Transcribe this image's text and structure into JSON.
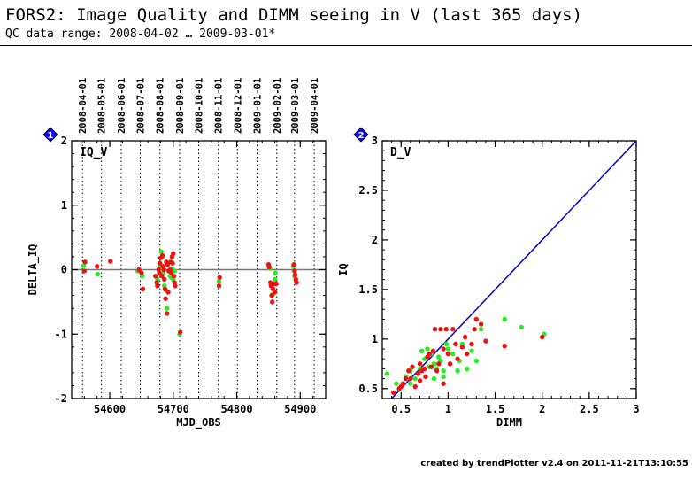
{
  "header": {
    "title": "FORS2: Image Quality and DIMM seeing in V (last 365 days)",
    "subtitle": "QC data range: 2008-04-02 … 2009-03-01*"
  },
  "footer": "created by trendPlotter v2.4 on 2011-11-21T13:10:55",
  "colors": {
    "green": "#22ee22",
    "red": "#ee1111",
    "line": "#0000cc",
    "badge": "#1010ee"
  },
  "chart_data": [
    {
      "id": "iq-v-panel",
      "badge": "1",
      "type": "scatter",
      "panel_label": "IQ_V",
      "xlabel": "MJD_OBS",
      "ylabel": "DELTA_IQ",
      "xlim": [
        54540,
        54940
      ],
      "ylim": [
        -2,
        2
      ],
      "x_ticks": [
        54600,
        54700,
        54800,
        54900
      ],
      "y_ticks": [
        -2,
        -1,
        0,
        1,
        2
      ],
      "hline": 0,
      "date_markers": [
        {
          "mjd": 54557,
          "label": "2008-04-01"
        },
        {
          "mjd": 54587,
          "label": "2008-05-01"
        },
        {
          "mjd": 54618,
          "label": "2008-06-01"
        },
        {
          "mjd": 54648,
          "label": "2008-07-01"
        },
        {
          "mjd": 54679,
          "label": "2008-08-01"
        },
        {
          "mjd": 54710,
          "label": "2008-09-01"
        },
        {
          "mjd": 54740,
          "label": "2008-10-01"
        },
        {
          "mjd": 54771,
          "label": "2008-11-01"
        },
        {
          "mjd": 54801,
          "label": "2008-12-01"
        },
        {
          "mjd": 54832,
          "label": "2009-01-01"
        },
        {
          "mjd": 54863,
          "label": "2009-02-01"
        },
        {
          "mjd": 54891,
          "label": "2009-03-01"
        },
        {
          "mjd": 54922,
          "label": "2009-04-01"
        }
      ],
      "series": [
        {
          "color": "green",
          "points": [
            [
              54559,
              0.06
            ],
            [
              54581,
              -0.07
            ],
            [
              54644,
              -0.02
            ],
            [
              54651,
              -0.1
            ],
            [
              54675,
              -0.15
            ],
            [
              54679,
              0.05
            ],
            [
              54681,
              0.28
            ],
            [
              54683,
              0.2
            ],
            [
              54684,
              -0.05
            ],
            [
              54686,
              -0.25
            ],
            [
              54688,
              -0.32
            ],
            [
              54690,
              -0.6
            ],
            [
              54692,
              0.1
            ],
            [
              54695,
              -0.1
            ],
            [
              54697,
              -0.12
            ],
            [
              54699,
              0.0
            ],
            [
              54700,
              -0.15
            ],
            [
              54702,
              -0.02
            ],
            [
              54710,
              -1.0
            ],
            [
              54772,
              -0.18
            ],
            [
              54852,
              0.02
            ],
            [
              54855,
              -0.25
            ],
            [
              54857,
              -0.38
            ],
            [
              54860,
              -0.15
            ],
            [
              54861,
              -0.05
            ],
            [
              54889,
              0.05
            ],
            [
              54891,
              -0.1
            ]
          ]
        },
        {
          "color": "red",
          "points": [
            [
              54560,
              -0.02
            ],
            [
              54561,
              0.12
            ],
            [
              54580,
              0.05
            ],
            [
              54601,
              0.13
            ],
            [
              54646,
              0.0
            ],
            [
              54650,
              -0.05
            ],
            [
              54652,
              -0.3
            ],
            [
              54672,
              -0.1
            ],
            [
              54674,
              -0.2
            ],
            [
              54675,
              -0.25
            ],
            [
              54677,
              0.0
            ],
            [
              54678,
              -0.05
            ],
            [
              54679,
              0.1
            ],
            [
              54680,
              0.18
            ],
            [
              54682,
              -0.1
            ],
            [
              54683,
              0.22
            ],
            [
              54684,
              0.05
            ],
            [
              54685,
              0.0
            ],
            [
              54686,
              -0.15
            ],
            [
              54687,
              -0.3
            ],
            [
              54688,
              -0.45
            ],
            [
              54689,
              0.12
            ],
            [
              54690,
              -0.68
            ],
            [
              54691,
              0.08
            ],
            [
              54692,
              -0.35
            ],
            [
              54693,
              -0.02
            ],
            [
              54695,
              0.0
            ],
            [
              54696,
              0.12
            ],
            [
              54697,
              -0.05
            ],
            [
              54698,
              0.2
            ],
            [
              54699,
              0.1
            ],
            [
              54700,
              0.25
            ],
            [
              54701,
              -0.1
            ],
            [
              54702,
              -0.2
            ],
            [
              54703,
              -0.25
            ],
            [
              54711,
              -0.97
            ],
            [
              54772,
              -0.25
            ],
            [
              54773,
              -0.12
            ],
            [
              54850,
              0.08
            ],
            [
              54851,
              0.04
            ],
            [
              54853,
              -0.2
            ],
            [
              54854,
              -0.25
            ],
            [
              54855,
              -0.4
            ],
            [
              54856,
              -0.5
            ],
            [
              54857,
              -0.3
            ],
            [
              54858,
              -0.22
            ],
            [
              54860,
              -0.35
            ],
            [
              54862,
              -0.22
            ],
            [
              54890,
              0.08
            ],
            [
              54891,
              -0.02
            ],
            [
              54892,
              -0.08
            ],
            [
              54893,
              -0.15
            ],
            [
              54894,
              -0.2
            ]
          ]
        }
      ]
    },
    {
      "id": "d-v-panel",
      "badge": "2",
      "type": "scatter",
      "panel_label": "D_V",
      "xlabel": "DIMM",
      "ylabel": "IQ",
      "xlim": [
        0.3,
        3
      ],
      "ylim": [
        0.4,
        3
      ],
      "x_ticks": [
        0.5,
        1,
        1.5,
        2,
        2.5,
        3
      ],
      "y_ticks": [
        0.5,
        1,
        1.5,
        2,
        2.5,
        3
      ],
      "diagonal": true,
      "series": [
        {
          "color": "green",
          "points": [
            [
              0.35,
              0.65
            ],
            [
              0.45,
              0.55
            ],
            [
              0.55,
              0.62
            ],
            [
              0.6,
              0.68
            ],
            [
              0.65,
              0.6
            ],
            [
              0.7,
              0.7
            ],
            [
              0.72,
              0.88
            ],
            [
              0.75,
              0.8
            ],
            [
              0.78,
              0.9
            ],
            [
              0.8,
              0.72
            ],
            [
              0.82,
              0.85
            ],
            [
              0.85,
              0.75
            ],
            [
              0.88,
              0.7
            ],
            [
              0.9,
              0.82
            ],
            [
              0.92,
              0.78
            ],
            [
              0.95,
              0.62
            ],
            [
              0.98,
              0.95
            ],
            [
              1.0,
              0.9
            ],
            [
              1.05,
              0.85
            ],
            [
              1.1,
              0.68
            ],
            [
              1.12,
              0.78
            ],
            [
              1.15,
              0.95
            ],
            [
              1.2,
              0.7
            ],
            [
              1.25,
              0.88
            ],
            [
              1.3,
              0.78
            ],
            [
              1.35,
              1.1
            ],
            [
              1.6,
              1.2
            ],
            [
              1.78,
              1.12
            ],
            [
              2.02,
              1.05
            ],
            [
              0.6,
              0.55
            ],
            [
              0.85,
              0.6
            ],
            [
              0.95,
              0.68
            ]
          ]
        },
        {
          "color": "red",
          "points": [
            [
              0.42,
              0.46
            ],
            [
              0.48,
              0.5
            ],
            [
              0.52,
              0.55
            ],
            [
              0.55,
              0.6
            ],
            [
              0.58,
              0.68
            ],
            [
              0.6,
              0.6
            ],
            [
              0.62,
              0.72
            ],
            [
              0.65,
              0.52
            ],
            [
              0.68,
              0.65
            ],
            [
              0.7,
              0.75
            ],
            [
              0.72,
              0.68
            ],
            [
              0.75,
              0.7
            ],
            [
              0.78,
              0.82
            ],
            [
              0.8,
              0.85
            ],
            [
              0.82,
              0.72
            ],
            [
              0.84,
              0.88
            ],
            [
              0.86,
              1.1
            ],
            [
              0.88,
              0.68
            ],
            [
              0.9,
              0.75
            ],
            [
              0.92,
              1.1
            ],
            [
              0.95,
              0.9
            ],
            [
              0.98,
              1.1
            ],
            [
              1.0,
              0.85
            ],
            [
              1.02,
              0.75
            ],
            [
              1.05,
              1.1
            ],
            [
              1.08,
              0.95
            ],
            [
              1.1,
              0.8
            ],
            [
              1.15,
              0.92
            ],
            [
              1.18,
              1.02
            ],
            [
              1.2,
              0.85
            ],
            [
              1.25,
              0.95
            ],
            [
              1.28,
              1.1
            ],
            [
              1.3,
              1.2
            ],
            [
              1.35,
              1.15
            ],
            [
              1.4,
              0.98
            ],
            [
              1.6,
              0.93
            ],
            [
              2.0,
              1.02
            ],
            [
              0.5,
              0.52
            ],
            [
              0.7,
              0.58
            ],
            [
              0.76,
              0.62
            ],
            [
              0.95,
              0.55
            ]
          ]
        }
      ]
    }
  ]
}
